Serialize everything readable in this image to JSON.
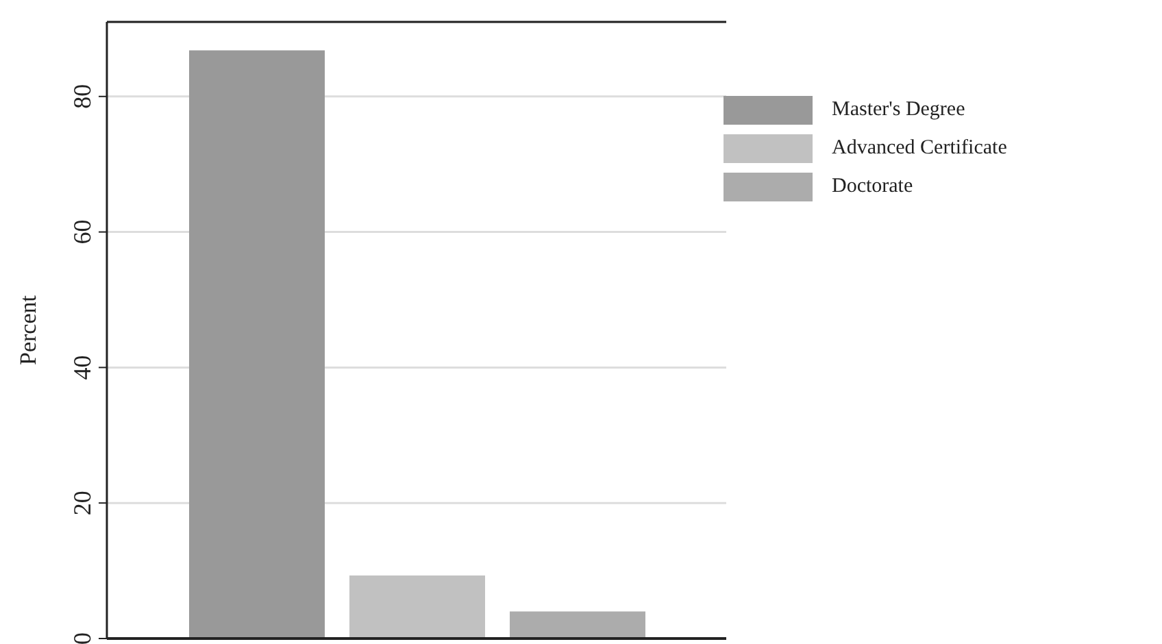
{
  "chart_data": {
    "type": "bar",
    "ylabel": "Percent",
    "categories": [
      null
    ],
    "series": [
      {
        "name": "Master's Degree",
        "color": "#999999",
        "values": [
          86.8
        ]
      },
      {
        "name": "Advanced Certificate",
        "color": "#c1c1c1",
        "values": [
          9.3
        ]
      },
      {
        "name": "Doctorate",
        "color": "#acacac",
        "values": [
          4.0
        ]
      }
    ],
    "ylim": [
      0,
      91
    ],
    "yticks": [
      0,
      20,
      40,
      60,
      80
    ],
    "grid": "y",
    "legend": "top right"
  }
}
